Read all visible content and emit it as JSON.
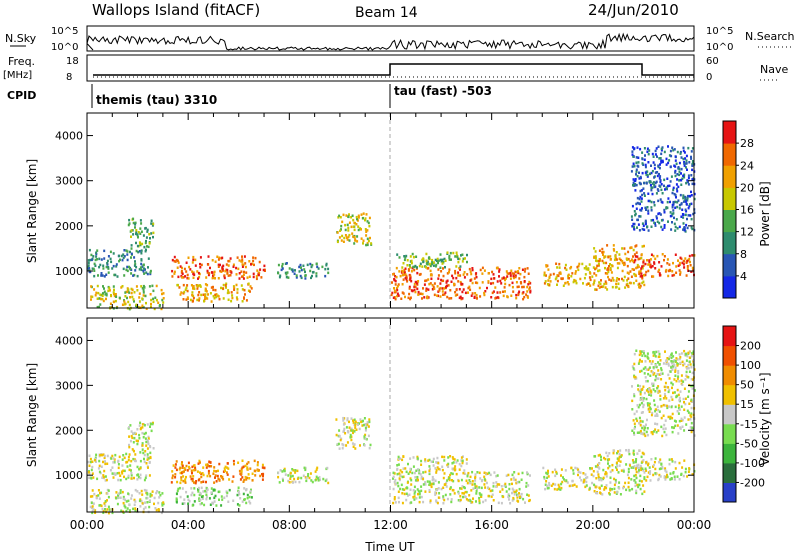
{
  "header": {
    "station": "Wallops Island (fitACF)",
    "beam": "Beam 14",
    "date": "24/Jun/2010"
  },
  "status_panels": {
    "nsky_label": "N.Sky",
    "nsky_ticks": [
      "10^5",
      "10^0"
    ],
    "nsearch_label": "N.Search",
    "nsearch_ticks": [
      "10^5",
      "10^0"
    ],
    "freq_label": "Freq.",
    "freq_unit": "[MHz]",
    "freq_ticks": [
      "18",
      "8"
    ],
    "nave_label": "Nave",
    "nave_ticks": [
      "60",
      "0"
    ],
    "cpid_label": "CPID",
    "cpid_segments": [
      {
        "start_h": 0,
        "name": "themis (tau) 3310"
      },
      {
        "start_h": 12,
        "name": "tau (fast) -503"
      }
    ]
  },
  "chart_data": [
    {
      "type": "heatmap",
      "quantity": "Power",
      "ylabel": "Slant Range [km]",
      "xlabel": "",
      "xlim_hours": [
        0,
        24
      ],
      "ylim": [
        180,
        4500
      ],
      "yticks": [
        1000,
        2000,
        3000,
        4000
      ],
      "colorbar": {
        "label": "Power [dB]",
        "ticks": [
          "4",
          "8",
          "12",
          "16",
          "20",
          "24",
          "28"
        ],
        "colors": [
          "#1428e6",
          "#2856b4",
          "#2e8c6e",
          "#4aa84a",
          "#c8c800",
          "#f0a000",
          "#f06800",
          "#e61414"
        ]
      },
      "regions": [
        {
          "t": [
            0.1,
            3.0
          ],
          "r": [
            180,
            700
          ],
          "lv": 4
        },
        {
          "t": [
            0.0,
            2.5
          ],
          "r": [
            900,
            1500
          ],
          "lv": 2
        },
        {
          "t": [
            1.6,
            2.6
          ],
          "r": [
            1500,
            2200
          ],
          "lv": 3
        },
        {
          "t": [
            3.3,
            7.0
          ],
          "r": [
            850,
            1350
          ],
          "lv": 6
        },
        {
          "t": [
            3.5,
            6.5
          ],
          "r": [
            350,
            750
          ],
          "lv": 5
        },
        {
          "t": [
            7.5,
            9.5
          ],
          "r": [
            850,
            1200
          ],
          "lv": 2
        },
        {
          "t": [
            9.8,
            11.2
          ],
          "r": [
            1600,
            2300
          ],
          "lv": 4
        },
        {
          "t": [
            12.0,
            17.5
          ],
          "r": [
            400,
            1100
          ],
          "lv": 6
        },
        {
          "t": [
            12.2,
            15.0
          ],
          "r": [
            1100,
            1450
          ],
          "lv": 3
        },
        {
          "t": [
            18.0,
            20.0
          ],
          "r": [
            700,
            1200
          ],
          "lv": 5
        },
        {
          "t": [
            20.0,
            22.0
          ],
          "r": [
            600,
            1600
          ],
          "lv": 5
        },
        {
          "t": [
            21.5,
            24.0
          ],
          "r": [
            900,
            1400
          ],
          "lv": 6
        },
        {
          "t": [
            21.5,
            24.0
          ],
          "r": [
            1900,
            3800
          ],
          "lv": 1
        }
      ]
    },
    {
      "type": "heatmap",
      "quantity": "Velocity",
      "ylabel": "Slant Range [km]",
      "xlabel": "Time UT",
      "xlim_hours": [
        0,
        24
      ],
      "xticks": [
        "00:00",
        "04:00",
        "08:00",
        "12:00",
        "16:00",
        "20:00",
        "00:00"
      ],
      "ylim": [
        180,
        4500
      ],
      "yticks": [
        1000,
        2000,
        3000,
        4000
      ],
      "colorbar": {
        "label": "Velocity [m s⁻¹]",
        "ticks": [
          "200",
          "100",
          "50",
          "15",
          "-15",
          "-50",
          "-100",
          "-200"
        ],
        "colors": [
          "#2840c8",
          "#2a6e3c",
          "#3cb43c",
          "#78dc50",
          "#c8c8c8",
          "#f0c000",
          "#f08c00",
          "#f05000",
          "#e61414"
        ]
      },
      "regions": [
        {
          "t": [
            0.1,
            3.0
          ],
          "r": [
            180,
            700
          ],
          "lv": 4
        },
        {
          "t": [
            0.0,
            2.5
          ],
          "r": [
            900,
            1500
          ],
          "lv": 4
        },
        {
          "t": [
            1.6,
            2.6
          ],
          "r": [
            1500,
            2200
          ],
          "lv": 4
        },
        {
          "t": [
            3.3,
            7.0
          ],
          "r": [
            850,
            1350
          ],
          "lv": 6
        },
        {
          "t": [
            3.5,
            6.5
          ],
          "r": [
            350,
            750
          ],
          "lv": 3
        },
        {
          "t": [
            7.5,
            9.5
          ],
          "r": [
            850,
            1200
          ],
          "lv": 4
        },
        {
          "t": [
            9.8,
            11.2
          ],
          "r": [
            1600,
            2300
          ],
          "lv": 4
        },
        {
          "t": [
            12.0,
            17.5
          ],
          "r": [
            400,
            1100
          ],
          "lv": 4
        },
        {
          "t": [
            12.2,
            15.0
          ],
          "r": [
            1100,
            1450
          ],
          "lv": 4
        },
        {
          "t": [
            18.0,
            20.0
          ],
          "r": [
            700,
            1200
          ],
          "lv": 4
        },
        {
          "t": [
            20.0,
            22.0
          ],
          "r": [
            600,
            1600
          ],
          "lv": 4
        },
        {
          "t": [
            21.5,
            24.0
          ],
          "r": [
            900,
            1400
          ],
          "lv": 4
        },
        {
          "t": [
            21.5,
            24.0
          ],
          "r": [
            1900,
            3800
          ],
          "lv": 4
        }
      ]
    }
  ]
}
